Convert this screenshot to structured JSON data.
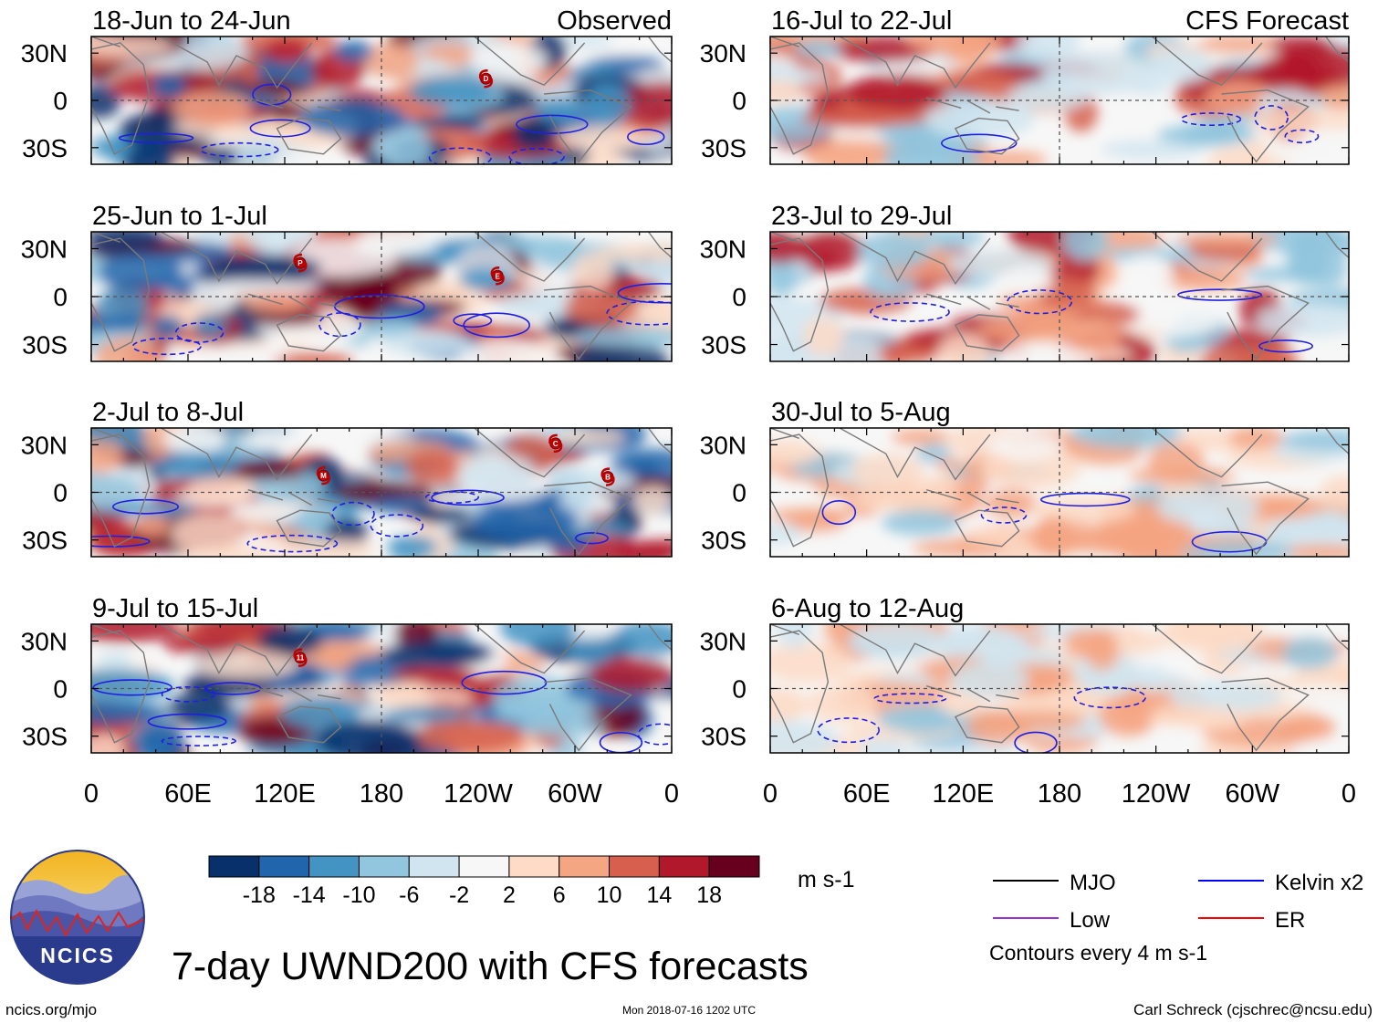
{
  "title": "7-day UWND200 with CFS forecasts",
  "footer": {
    "left": "ncics.org/mjo",
    "center": "Mon 2018-07-16 1202 UTC",
    "right": "Carl Schreck (cjschrec@ncsu.edu)"
  },
  "logo": {
    "text": "NCICS"
  },
  "colorbar": {
    "units": "m s-1",
    "colors": [
      "#08306b",
      "#2166ac",
      "#4393c3",
      "#92c5de",
      "#d1e5f0",
      "#f7f7f7",
      "#fddbc7",
      "#f4a582",
      "#d6604d",
      "#b2182b",
      "#67001f"
    ],
    "ticks": [
      "-18",
      "-14",
      "-10",
      "-6",
      "-2",
      "2",
      "6",
      "10",
      "14",
      "18"
    ]
  },
  "legend": {
    "items": [
      {
        "label": "MJO",
        "color": "#000000"
      },
      {
        "label": "Kelvin x2",
        "color": "#0000ff"
      },
      {
        "label": "Low",
        "color": "#9932cc"
      },
      {
        "label": "ER",
        "color": "#ff0000"
      }
    ],
    "note": "Contours every 4 m s-1"
  },
  "chart_data": {
    "type": "heatmap",
    "variable": "200-hPa zonal wind anomaly, 7-day mean",
    "units": "m s-1",
    "y_ticks": [
      "30N",
      "0",
      "30S"
    ],
    "x_ticks": [
      "0",
      "60E",
      "120E",
      "180",
      "120W",
      "60W",
      "0"
    ],
    "columns": [
      {
        "name": "Observed",
        "panels": [
          "18-Jun to 24-Jun",
          "25-Jun to 1-Jul",
          "2-Jul to 8-Jul",
          "9-Jul to 15-Jul"
        ]
      },
      {
        "name": "CFS Forecast",
        "panels": [
          "16-Jul to 22-Jul",
          "23-Jul to 29-Jul",
          "30-Jul to 5-Aug",
          "6-Aug to 12-Aug"
        ]
      }
    ],
    "storm_markers": [
      {
        "panel": 0,
        "label": "D"
      },
      {
        "panel": 1,
        "label": "P"
      },
      {
        "panel": 1,
        "label": "E"
      },
      {
        "panel": 2,
        "label": "C"
      },
      {
        "panel": 2,
        "label": "M"
      },
      {
        "panel": 2,
        "label": "B"
      },
      {
        "panel": 3,
        "label": "11"
      }
    ]
  }
}
